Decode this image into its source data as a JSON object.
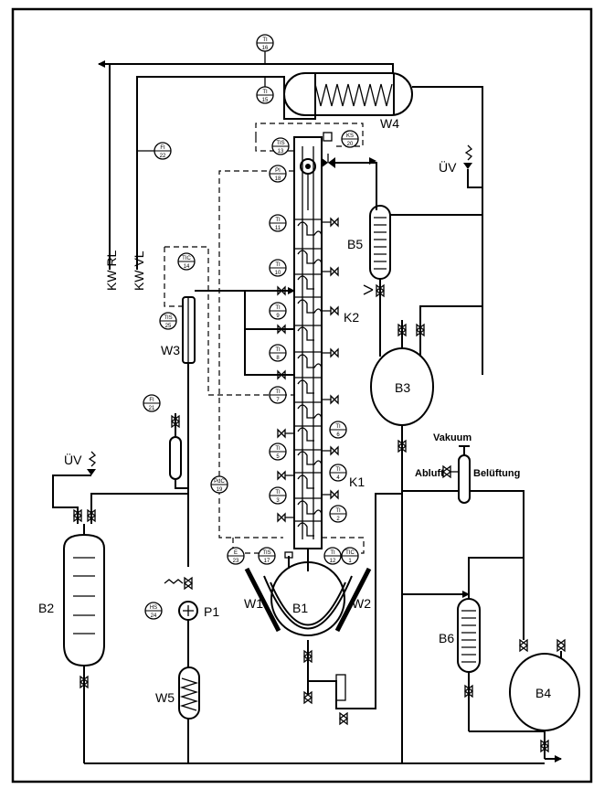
{
  "equipment": {
    "w4": "W4",
    "w3": "W3",
    "w5": "W5",
    "w1": "W1",
    "w2": "W2",
    "b1": "B1",
    "b2": "B2",
    "b3": "B3",
    "b4": "B4",
    "b5": "B5",
    "b6": "B6",
    "k1": "K1",
    "k2": "K2",
    "p1": "P1"
  },
  "streams": {
    "kw_rl": "KW RL",
    "kw_vl": "KW VL",
    "uv_top": "ÜV",
    "uv_left": "ÜV",
    "vakuum": "Vakuum",
    "abluft": "Abluft",
    "belueftung": "Belüftung"
  },
  "instruments": [
    {
      "tag": "TI",
      "num": "16"
    },
    {
      "tag": "TI",
      "num": "15"
    },
    {
      "tag": "FI",
      "num": "22"
    },
    {
      "tag": "TIS",
      "num": "13"
    },
    {
      "tag": "KS",
      "num": "20"
    },
    {
      "tag": "PI",
      "num": "18"
    },
    {
      "tag": "TI",
      "num": "11"
    },
    {
      "tag": "TI",
      "num": "10"
    },
    {
      "tag": "TI",
      "num": "9"
    },
    {
      "tag": "TI",
      "num": "8"
    },
    {
      "tag": "TI",
      "num": "7"
    },
    {
      "tag": "TI",
      "num": "6"
    },
    {
      "tag": "TI",
      "num": "5"
    },
    {
      "tag": "TI",
      "num": "4"
    },
    {
      "tag": "TI",
      "num": "3"
    },
    {
      "tag": "TI",
      "num": "2"
    },
    {
      "tag": "TIC",
      "num": "14"
    },
    {
      "tag": "TIS",
      "num": "25"
    },
    {
      "tag": "FI",
      "num": "21"
    },
    {
      "tag": "PdC",
      "num": "19"
    },
    {
      "tag": "E",
      "num": "23"
    },
    {
      "tag": "TIS",
      "num": "17"
    },
    {
      "tag": "TI",
      "num": "12"
    },
    {
      "tag": "TIC",
      "num": "1"
    },
    {
      "tag": "HS",
      "num": "24"
    }
  ]
}
